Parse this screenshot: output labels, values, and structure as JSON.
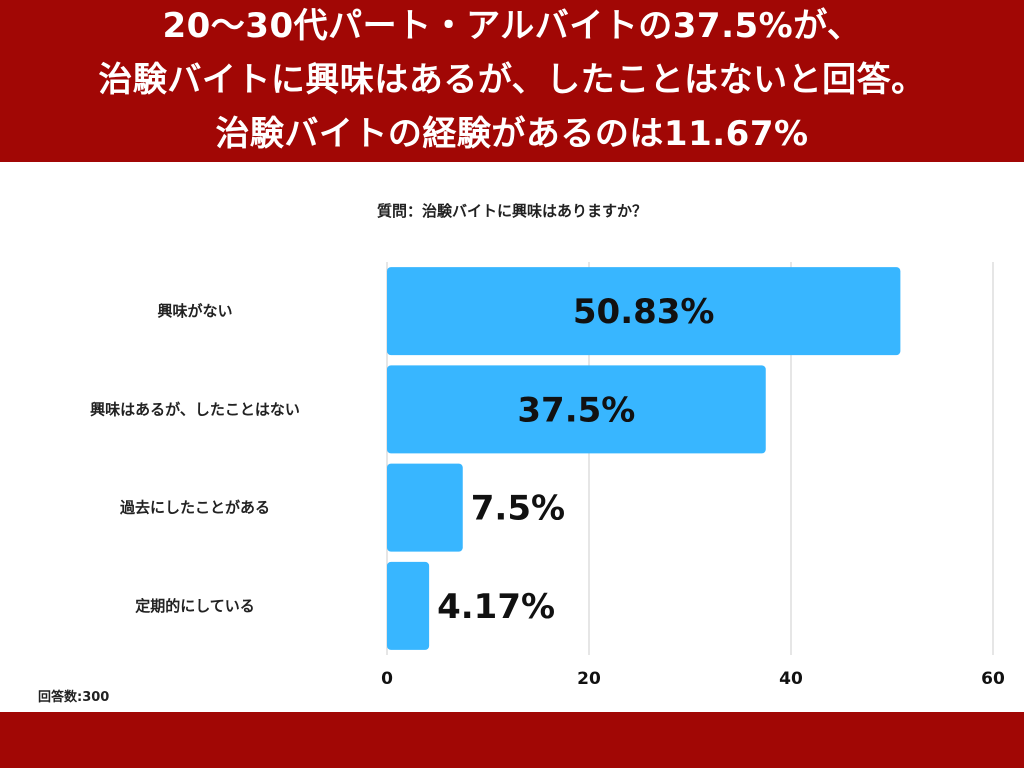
{
  "header": {
    "line1": "20〜30代パート・アルバイトの37.5%が、",
    "line2": "治験バイトに興味はあるが、したことはないと回答。",
    "line3": "治験バイトの経験があるのは11.67%"
  },
  "question": "質問：治験バイトに興味はありますか？",
  "sample_note": "回答数:300",
  "colors": {
    "brand_band": "#a10705",
    "bar": "#38b6ff",
    "grid": "#cccccc"
  },
  "chart_data": {
    "type": "bar",
    "orientation": "horizontal",
    "title": "質問：治験バイトに興味はありますか？",
    "categories": [
      "興味がない",
      "興味はあるが、したことはない",
      "過去にしたことがある",
      "定期的にしている"
    ],
    "values": [
      50.83,
      37.5,
      7.5,
      4.17
    ],
    "value_labels": [
      "50.83%",
      "37.5%",
      "7.5%",
      "4.17%"
    ],
    "xlim": [
      0,
      60
    ],
    "xticks": [
      "0",
      "20",
      "40",
      "60"
    ],
    "grid": true,
    "legend": "none"
  }
}
